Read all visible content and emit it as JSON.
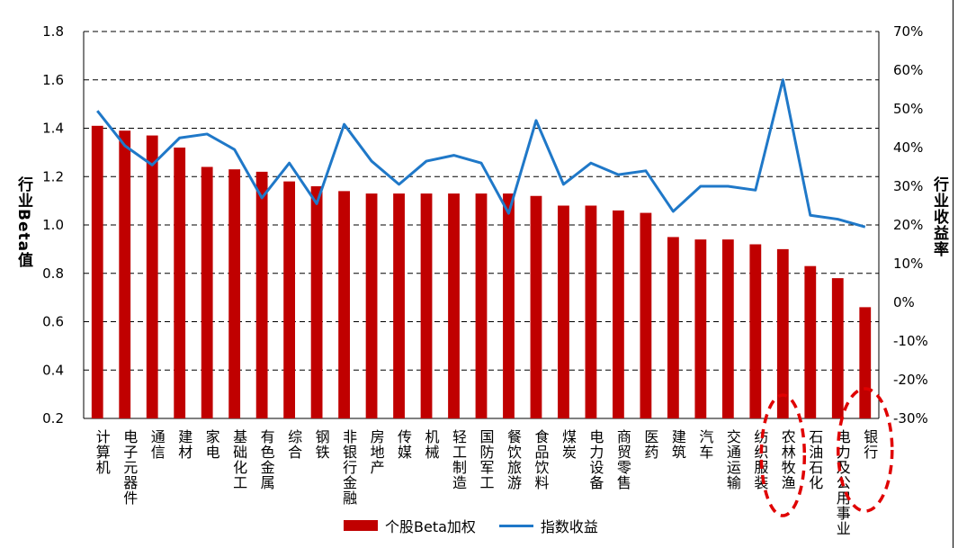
{
  "chart_data": {
    "type": "bar",
    "categories": [
      "计算机",
      "电子元器件",
      "通信",
      "建材",
      "家电",
      "基础化工",
      "有色金属",
      "综合",
      "钢铁",
      "非银行金融",
      "房地产",
      "传媒",
      "机械",
      "轻工制造",
      "国防军工",
      "餐饮旅游",
      "食品饮料",
      "煤炭",
      "电力设备",
      "商贸零售",
      "医药",
      "建筑",
      "汽车",
      "交通运输",
      "纺织服装",
      "农林牧渔",
      "石油石化",
      "电力及公用事业",
      "银行"
    ],
    "series": [
      {
        "name": "个股Beta加权",
        "type": "bar",
        "axis": "left",
        "color": "#c00000",
        "values": [
          1.41,
          1.39,
          1.37,
          1.32,
          1.24,
          1.23,
          1.22,
          1.18,
          1.16,
          1.14,
          1.13,
          1.13,
          1.13,
          1.13,
          1.13,
          1.13,
          1.12,
          1.08,
          1.08,
          1.06,
          1.05,
          0.95,
          0.94,
          0.94,
          0.92,
          0.9,
          0.83,
          0.78,
          0.66
        ]
      },
      {
        "name": "指数收益",
        "type": "line",
        "axis": "right",
        "color": "#1f78c8",
        "values": [
          49.5,
          40.5,
          35.5,
          42.5,
          43.5,
          39.5,
          27,
          36,
          25.5,
          46,
          36.5,
          30.5,
          36.5,
          38,
          36,
          23,
          47,
          30.5,
          36,
          33,
          34,
          23.5,
          30,
          30,
          29,
          57.5,
          22.5,
          21.5,
          19.5
        ]
      }
    ],
    "ylabel": "行业Beta值",
    "y2label": "行业收益率",
    "ylim": [
      0.2,
      1.8
    ],
    "yticks": [
      "0.2",
      "0.4",
      "0.6",
      "0.8",
      "1.0",
      "1.2",
      "1.4",
      "1.6",
      "1.8"
    ],
    "y2lim": [
      -30,
      70
    ],
    "y2ticks": [
      "-30%",
      "-20%",
      "-10%",
      "0%",
      "10%",
      "20%",
      "30%",
      "40%",
      "50%",
      "60%",
      "70%"
    ],
    "grid": true,
    "legend_position": "bottom",
    "highlighted_categories": [
      "农林牧渔",
      "银行"
    ],
    "highlight_color": "#e00000"
  }
}
